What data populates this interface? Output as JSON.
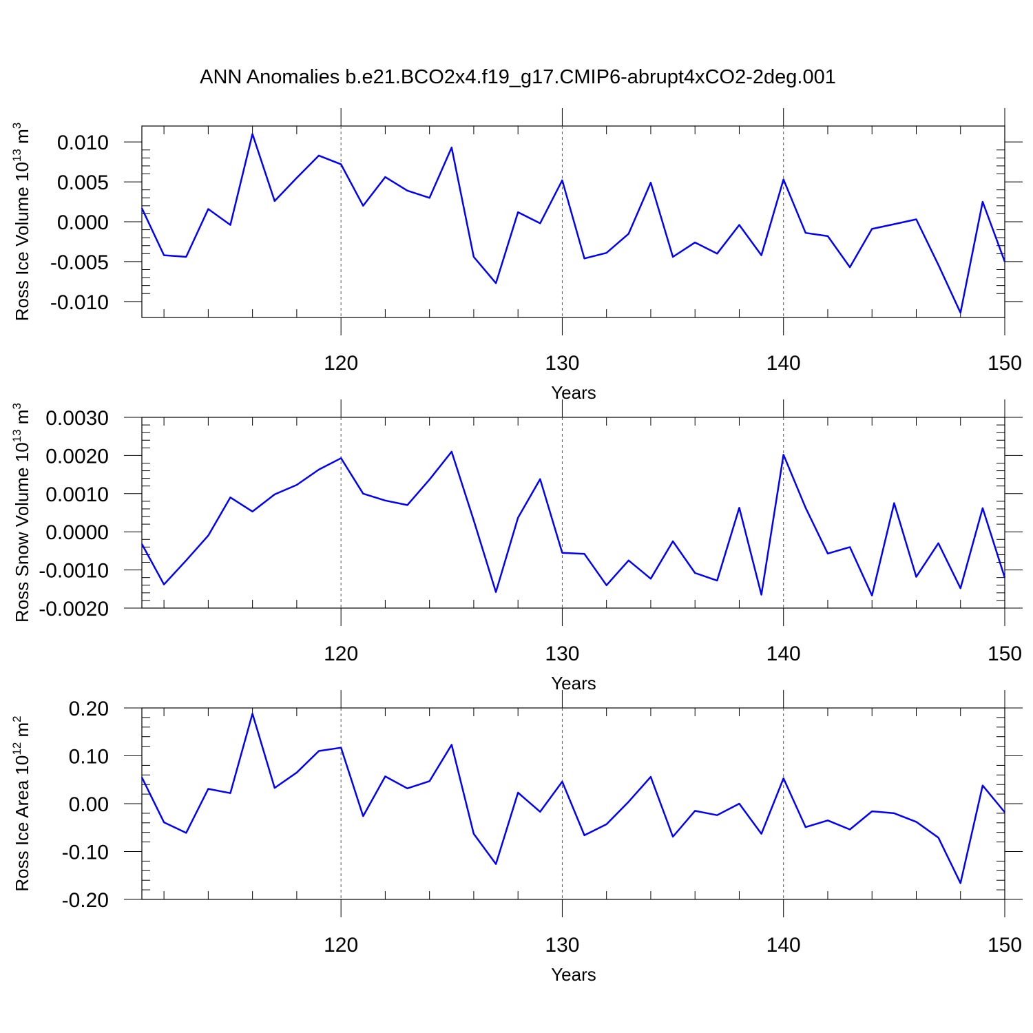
{
  "title": "ANN Anomalies b.e21.BCO2x4.f19_g17.CMIP6-abrupt4xCO2-2deg.001",
  "line_color": "#0000ff",
  "chart_data": [
    {
      "type": "line",
      "ylabel": "Ross Ice Volume 10",
      "ylabel_sup": "13",
      "ylabel_unit": "m",
      "ylabel_unit_sup": "3",
      "xlabel": "Years",
      "xlim": [
        111,
        150
      ],
      "ylim": [
        -0.012,
        0.012
      ],
      "xticks": [
        120,
        130,
        140,
        150
      ],
      "xtick_labels": [
        "120",
        "130",
        "140",
        "150"
      ],
      "yticks": [
        -0.01,
        -0.005,
        0,
        0.005,
        0.01
      ],
      "ytick_labels": [
        "-0.010",
        "-0.005",
        "0.000",
        "0.005",
        "0.010"
      ],
      "x": [
        111,
        112,
        113,
        114,
        115,
        116,
        117,
        118,
        119,
        120,
        121,
        122,
        123,
        124,
        125,
        126,
        127,
        128,
        129,
        130,
        131,
        132,
        133,
        134,
        135,
        136,
        137,
        138,
        139,
        140,
        141,
        142,
        143,
        144,
        145,
        146,
        147,
        148,
        149,
        150
      ],
      "series": [
        {
          "values": [
            0.0017,
            -0.0042,
            -0.0044,
            0.0016,
            -0.0004,
            0.011,
            0.0026,
            0.0055,
            0.0083,
            0.0072,
            0.002,
            0.0056,
            0.0039,
            0.003,
            0.0093,
            -0.0044,
            -0.0077,
            0.0012,
            -0.0002,
            0.0052,
            -0.0046,
            -0.0039,
            -0.0015,
            0.0049,
            -0.0044,
            -0.0026,
            -0.004,
            -0.0004,
            -0.0042,
            0.0053,
            -0.0014,
            -0.0018,
            -0.0057,
            -0.0009,
            -0.0003,
            0.0003,
            -0.0054,
            -0.0114,
            0.0025,
            -0.005
          ]
        }
      ]
    },
    {
      "type": "line",
      "ylabel": "Ross Snow Volume 10",
      "ylabel_sup": "13",
      "ylabel_unit": "m",
      "ylabel_unit_sup": "3",
      "xlabel": "Years",
      "xlim": [
        111,
        150
      ],
      "ylim": [
        -0.002,
        0.003
      ],
      "xticks": [
        120,
        130,
        140,
        150
      ],
      "xtick_labels": [
        "120",
        "130",
        "140",
        "150"
      ],
      "yticks": [
        -0.002,
        -0.001,
        0,
        0.001,
        0.002,
        0.003
      ],
      "ytick_labels": [
        "-0.0020",
        "-0.0010",
        "0.0000",
        "0.0010",
        "0.0020",
        "0.0030"
      ],
      "x": [
        111,
        112,
        113,
        114,
        115,
        116,
        117,
        118,
        119,
        120,
        121,
        122,
        123,
        124,
        125,
        126,
        127,
        128,
        129,
        130,
        131,
        132,
        133,
        134,
        135,
        136,
        137,
        138,
        139,
        140,
        141,
        142,
        143,
        144,
        145,
        146,
        147,
        148,
        149,
        150
      ],
      "series": [
        {
          "values": [
            -0.00032,
            -0.00138,
            -0.00075,
            -0.0001,
            0.0009,
            0.00053,
            0.00098,
            0.00123,
            0.00163,
            0.00193,
            0.001,
            0.00082,
            0.0007,
            0.00137,
            0.0021,
            0.0003,
            -0.00158,
            0.00037,
            0.00138,
            -0.00055,
            -0.00058,
            -0.0014,
            -0.00075,
            -0.00123,
            -0.00025,
            -0.00108,
            -0.00128,
            0.00063,
            -0.00165,
            0.00202,
            0.00063,
            -0.00057,
            -0.0004,
            -0.00167,
            0.00075,
            -0.00118,
            -0.0003,
            -0.00148,
            0.00062,
            -0.0012
          ]
        }
      ]
    },
    {
      "type": "line",
      "ylabel": "Ross Ice Area 10",
      "ylabel_sup": "12",
      "ylabel_unit": "m",
      "ylabel_unit_sup": "2",
      "xlabel": "Years",
      "xlim": [
        111,
        150
      ],
      "ylim": [
        -0.2,
        0.2
      ],
      "xticks": [
        120,
        130,
        140,
        150
      ],
      "xtick_labels": [
        "120",
        "130",
        "140",
        "150"
      ],
      "yticks": [
        -0.2,
        -0.1,
        0,
        0.1,
        0.2
      ],
      "ytick_labels": [
        "-0.20",
        "-0.10",
        "0.00",
        "0.10",
        "0.20"
      ],
      "x": [
        111,
        112,
        113,
        114,
        115,
        116,
        117,
        118,
        119,
        120,
        121,
        122,
        123,
        124,
        125,
        126,
        127,
        128,
        129,
        130,
        131,
        132,
        133,
        134,
        135,
        136,
        137,
        138,
        139,
        140,
        141,
        142,
        143,
        144,
        145,
        146,
        147,
        148,
        149,
        150
      ],
      "series": [
        {
          "values": [
            0.055,
            -0.039,
            -0.061,
            0.031,
            0.022,
            0.188,
            0.033,
            0.065,
            0.11,
            0.117,
            -0.026,
            0.057,
            0.032,
            0.047,
            0.123,
            -0.063,
            -0.126,
            0.023,
            -0.017,
            0.046,
            -0.066,
            -0.043,
            0.004,
            0.056,
            -0.069,
            -0.015,
            -0.024,
            0.0,
            -0.063,
            0.053,
            -0.049,
            -0.035,
            -0.054,
            -0.016,
            -0.02,
            -0.038,
            -0.071,
            -0.166,
            0.038,
            -0.018
          ]
        }
      ]
    }
  ]
}
